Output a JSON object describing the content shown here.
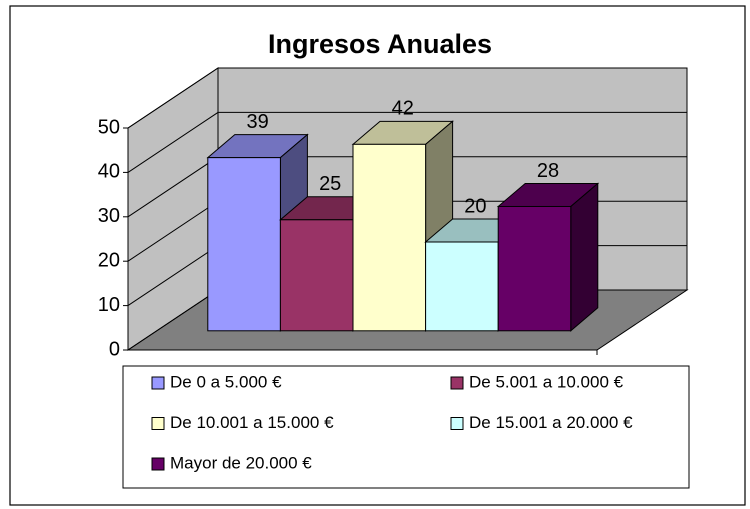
{
  "chart_data": {
    "type": "bar",
    "title": "Ingresos Anuales",
    "series": [
      {
        "name": "De 0 a 5.000 €",
        "color": "#9999ff",
        "values": [
          39
        ]
      },
      {
        "name": "De 5.001 a 10.000 €",
        "color": "#993366",
        "values": [
          25
        ]
      },
      {
        "name": "De 10.001 a 15.000 €",
        "color": "#ffffcc",
        "values": [
          42
        ]
      },
      {
        "name": "De 15.001 a 20.000 €",
        "color": "#ccffff",
        "values": [
          20
        ]
      },
      {
        "name": "Mayor de 20.000 €",
        "color": "#660066",
        "values": [
          28
        ]
      }
    ],
    "ylim": [
      0,
      50
    ],
    "yticks": [
      0,
      10,
      20,
      30,
      40,
      50
    ],
    "grid": true,
    "wall_color": "#c0c0c0",
    "floor_color": "#808080"
  }
}
